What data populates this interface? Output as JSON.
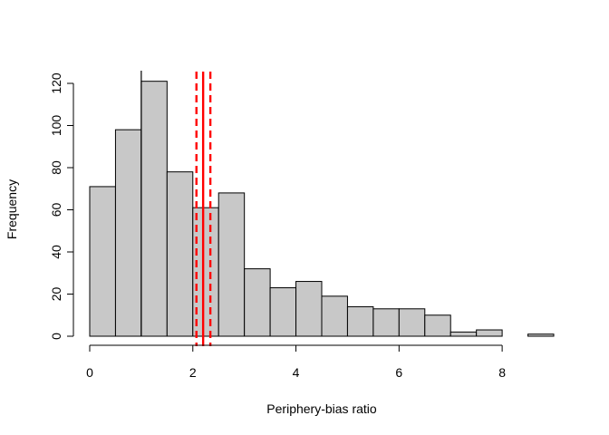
{
  "chart_data": {
    "type": "bar",
    "title": "",
    "xlabel": "Periphery-bias ratio",
    "ylabel": "Frequency",
    "bin_width": 0.5,
    "bin_edges": [
      0,
      0.5,
      1,
      1.5,
      2,
      2.5,
      3,
      3.5,
      4,
      4.5,
      5,
      5.5,
      6,
      6.5,
      7,
      7.5,
      8,
      8.5,
      9
    ],
    "values": [
      71,
      98,
      121,
      78,
      61,
      68,
      32,
      23,
      26,
      19,
      14,
      13,
      13,
      10,
      2,
      3,
      0,
      1
    ],
    "xlim": [
      0,
      9
    ],
    "ylim": [
      0,
      121
    ],
    "x_ticks": [
      0,
      2,
      4,
      6,
      8
    ],
    "x_tick_labels": [
      "0",
      "2",
      "4",
      "6",
      "8"
    ],
    "y_ticks": [
      0,
      20,
      40,
      60,
      80,
      100,
      120
    ],
    "y_tick_labels": [
      "0",
      "20",
      "40",
      "60",
      "80",
      "100",
      "120"
    ],
    "bar_fill": "#c8c8c8",
    "bar_stroke": "#000000",
    "reference_lines": [
      {
        "x": 1.0,
        "color": "#000000",
        "style": "solid"
      },
      {
        "x": 2.2,
        "color": "#ff0000",
        "style": "solid"
      },
      {
        "x": 2.07,
        "color": "#ff0000",
        "style": "dashed"
      },
      {
        "x": 2.34,
        "color": "#ff0000",
        "style": "dashed"
      }
    ],
    "grid": false,
    "legend": "none"
  }
}
